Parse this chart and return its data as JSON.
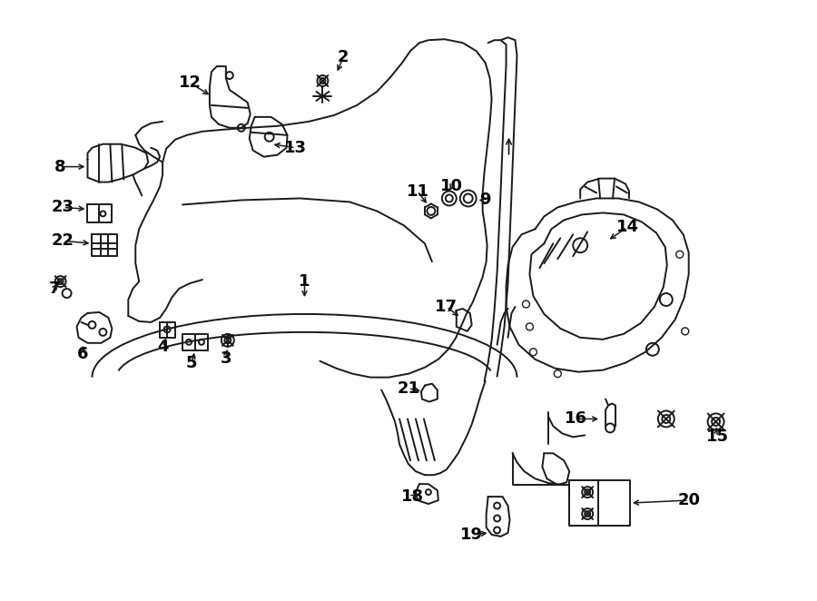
{
  "bg_color": "#ffffff",
  "line_color": "#1a1a1a",
  "label_color": "#000000",
  "figsize": [
    9.0,
    6.62
  ],
  "dpi": 100
}
